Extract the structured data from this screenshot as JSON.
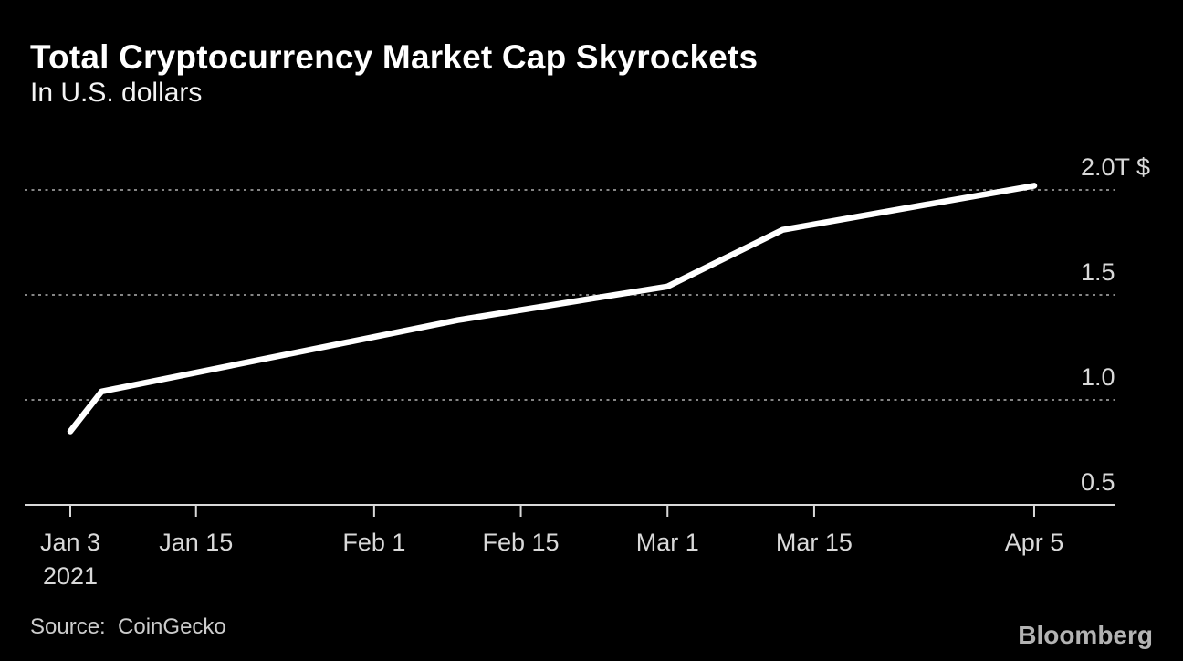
{
  "header": {
    "title": "Total Cryptocurrency Market Cap Skyrockets",
    "subtitle": "In U.S. dollars"
  },
  "footer": {
    "source": "Source:  CoinGecko",
    "brand": "Bloomberg"
  },
  "colors": {
    "background": "#000000",
    "title": "#ffffff",
    "axis_label": "#d9d9d9",
    "gridline": "#858585",
    "axis_line": "#d9d9d9",
    "line": "#ffffff",
    "source": "#cccccc",
    "brand": "#b3b3b3"
  },
  "chart_data": {
    "type": "line",
    "title": "Total Cryptocurrency Market Cap Skyrockets",
    "subtitle": "In U.S. dollars",
    "unit": "trillions of U.S. dollars",
    "legend": "none",
    "grid": "horizontal-dotted",
    "background": "#000000",
    "line_color": "#ffffff",
    "ylim": [
      0.5,
      2.05
    ],
    "series": [
      {
        "name": "Total cryptocurrency market cap",
        "points": [
          {
            "date": "Jan 3 2021",
            "day": 0,
            "value": 0.85
          },
          {
            "date": "Jan 6 2021",
            "day": 3,
            "value": 1.04
          },
          {
            "date": "Feb 9 2021",
            "day": 37,
            "value": 1.38
          },
          {
            "date": "Mar 1 2021",
            "day": 57,
            "value": 1.54
          },
          {
            "date": "Mar 12 2021",
            "day": 68,
            "value": 1.81
          },
          {
            "date": "Apr 5 2021",
            "day": 92,
            "value": 2.02
          }
        ]
      }
    ],
    "x_ticks": [
      {
        "label": "Jan 3",
        "sublabel": "2021",
        "day": 0
      },
      {
        "label": "Jan 15",
        "sublabel": "",
        "day": 12
      },
      {
        "label": "Feb 1",
        "sublabel": "",
        "day": 29
      },
      {
        "label": "Feb 15",
        "sublabel": "",
        "day": 43
      },
      {
        "label": "Mar 1",
        "sublabel": "",
        "day": 57
      },
      {
        "label": "Mar 15",
        "sublabel": "",
        "day": 71
      },
      {
        "label": "Apr 5",
        "sublabel": "",
        "day": 92
      }
    ],
    "y_ticks": [
      {
        "label": "0.5",
        "value": 0.5,
        "style": "baseline"
      },
      {
        "label": "1.0",
        "value": 1.0,
        "style": "dotted"
      },
      {
        "label": "1.5",
        "value": 1.5,
        "style": "dotted"
      },
      {
        "label": "2.0T $",
        "value": 2.0,
        "style": "dotted"
      }
    ]
  }
}
